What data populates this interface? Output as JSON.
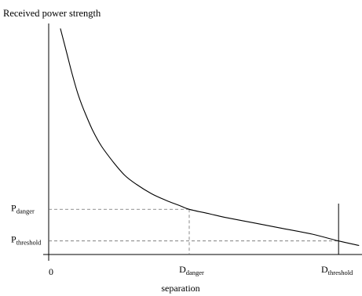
{
  "chart_data": {
    "type": "line",
    "title": "",
    "ylabel": "Received power strength",
    "xlabel": "separation",
    "x_ticks": [
      {
        "value": 0,
        "label": "0"
      }
    ],
    "x_markers": [
      {
        "base": "D",
        "sub": "danger",
        "value": 0.48,
        "style": "dashed"
      },
      {
        "base": "D",
        "sub": "threshold",
        "value": 0.99,
        "style": "solid"
      }
    ],
    "y_markers": [
      {
        "base": "P",
        "sub": "danger",
        "value": 0.2
      },
      {
        "base": "P",
        "sub": "threshold",
        "value": 0.06
      }
    ],
    "xlim": [
      0,
      1.07
    ],
    "ylim": [
      0,
      1.05
    ],
    "grid": false,
    "series": [
      {
        "name": "",
        "x": [
          0.04,
          0.06,
          0.08,
          0.1,
          0.12,
          0.15,
          0.18,
          0.22,
          0.26,
          0.3,
          0.35,
          0.4,
          0.45,
          0.48,
          0.55,
          0.6,
          0.7,
          0.8,
          0.9,
          0.99,
          1.06
        ],
        "y": [
          1.0,
          0.9,
          0.8,
          0.71,
          0.64,
          0.55,
          0.48,
          0.41,
          0.35,
          0.31,
          0.27,
          0.24,
          0.215,
          0.2,
          0.18,
          0.165,
          0.14,
          0.115,
          0.09,
          0.06,
          0.04
        ]
      }
    ]
  }
}
